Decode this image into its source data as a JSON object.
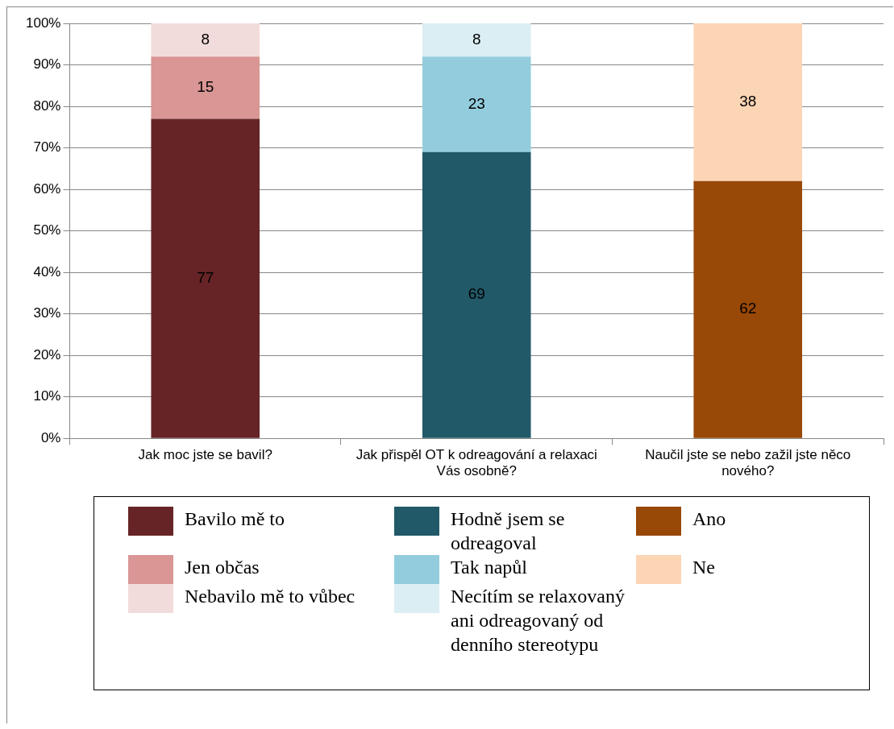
{
  "chart_data": {
    "type": "bar",
    "stacked": true,
    "categories": [
      "Jak moc jste se bavil?",
      "Jak přispěl OT k odreagování a relaxaci Vás osobně?",
      "Naučil jste se nebo zažil jste něco nového?"
    ],
    "series": [
      {
        "name": "Bavilo mě to",
        "color": "#662426",
        "values": [
          77,
          null,
          null
        ]
      },
      {
        "name": "Jen občas",
        "color": "#d99694",
        "values": [
          15,
          null,
          null
        ]
      },
      {
        "name": "Nebavilo mě to vůbec",
        "color": "#f2dcdb",
        "values": [
          8,
          null,
          null
        ]
      },
      {
        "name": "Hodně jsem se odreagoval",
        "color": "#215968",
        "values": [
          null,
          69,
          null
        ]
      },
      {
        "name": "Tak napůl",
        "color": "#93cddd",
        "values": [
          null,
          23,
          null
        ]
      },
      {
        "name": "Necítím se relaxovaný ani odreagovaný od denního stereotypu",
        "color": "#dbeef4",
        "values": [
          null,
          8,
          null
        ]
      },
      {
        "name": "Ano",
        "color": "#984807",
        "values": [
          null,
          null,
          62
        ]
      },
      {
        "name": "Ne",
        "color": "#fcd5b5",
        "values": [
          null,
          null,
          38
        ]
      }
    ],
    "ylim": [
      0,
      100
    ],
    "yticks": [
      {
        "value": 0,
        "label": "0%"
      },
      {
        "value": 10,
        "label": "10%"
      },
      {
        "value": 20,
        "label": "20%"
      },
      {
        "value": 30,
        "label": "30%"
      },
      {
        "value": 40,
        "label": "40%"
      },
      {
        "value": 50,
        "label": "50%"
      },
      {
        "value": 60,
        "label": "60%"
      },
      {
        "value": 70,
        "label": "70%"
      },
      {
        "value": 80,
        "label": "80%"
      },
      {
        "value": 90,
        "label": "90%"
      },
      {
        "value": 100,
        "label": "100%"
      }
    ],
    "grid": "y",
    "legend": "bottom",
    "data_labels": true
  }
}
